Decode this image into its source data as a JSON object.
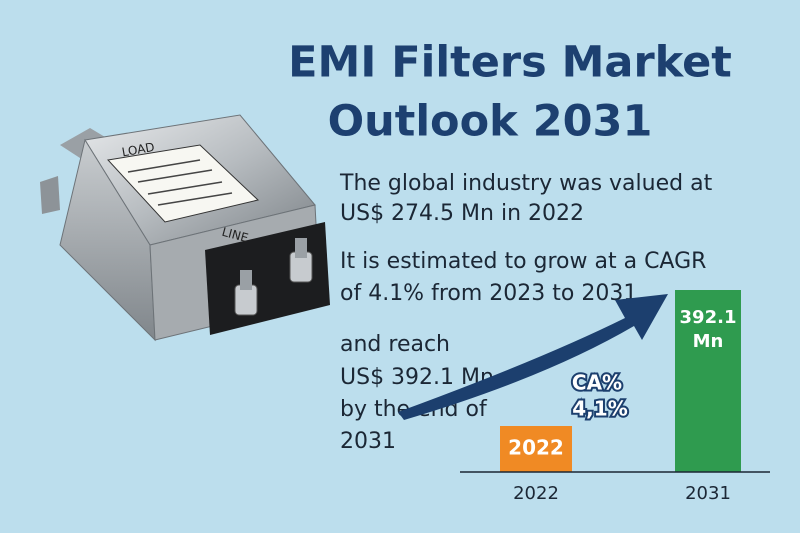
{
  "title": [
    "EMI Filters Market",
    "Outlook 2031"
  ],
  "body": [
    "The global industry was valued at",
    "US$ 274.5 Mn in 2022",
    "It is estimated to grow at a CAGR",
    "of 4.1% from 2023 to 2031",
    "and reach",
    "US$ 392.1 Mn",
    "by the end of",
    "2031"
  ],
  "product": {
    "labels": [
      "LOAD",
      "LINE"
    ]
  },
  "graphic": {
    "bars": [
      {
        "label": [
          "2022"
        ]
      },
      {
        "label": [
          "392.1",
          "Mn"
        ]
      }
    ],
    "arrow_label": [
      "CA%",
      "4,1%"
    ],
    "axis_labels": [
      "2022",
      "2031"
    ]
  }
}
